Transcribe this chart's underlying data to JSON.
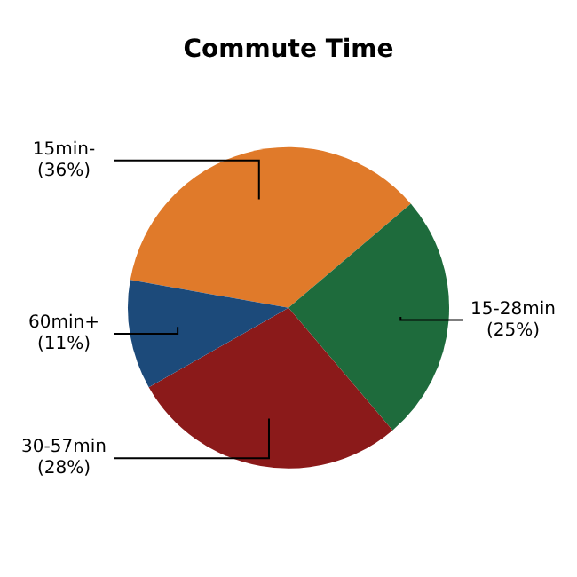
{
  "chart_data": {
    "type": "pie",
    "title": "Commute Time",
    "categories": [
      "15min-",
      "15-28min",
      "30-57min",
      "60min+"
    ],
    "values": [
      36,
      25,
      28,
      11
    ],
    "value_labels": [
      "(36%)",
      "(25%)",
      "(28%)",
      "(11%)"
    ],
    "colors": [
      "#e07a2a",
      "#1e6b3c",
      "#8b1a1a",
      "#1c4a7a"
    ],
    "legend": false
  }
}
